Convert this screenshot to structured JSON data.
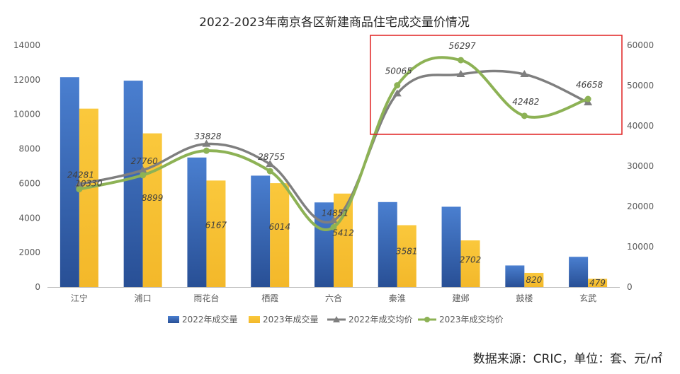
{
  "chart_data": {
    "type": "bar",
    "title": "2022-2023年南京各区新建商品住宅成交量价情况",
    "categories": [
      "江宁",
      "浦口",
      "雨花台",
      "栖霞",
      "六合",
      "秦淮",
      "建邺",
      "鼓楼",
      "玄武"
    ],
    "left_axis": {
      "min": 0,
      "max": 14000,
      "step": 2000,
      "ticks": [
        "0",
        "2000",
        "4000",
        "6000",
        "8000",
        "10000",
        "12000",
        "14000"
      ]
    },
    "right_axis": {
      "min": 0,
      "max": 60000,
      "step": 10000,
      "ticks": [
        "0",
        "10000",
        "20000",
        "30000",
        "40000",
        "50000",
        "60000"
      ]
    },
    "series": [
      {
        "name": "2022年成交量",
        "kind": "bar",
        "axis": "left",
        "color": "#4472C4",
        "values": [
          12150,
          11950,
          7500,
          6450,
          4900,
          4920,
          4650,
          1250,
          1750
        ]
      },
      {
        "name": "2023年成交量",
        "kind": "bar",
        "axis": "left",
        "color": "#F8C23A",
        "values": [
          10330,
          8899,
          6167,
          6014,
          5412,
          3581,
          2702,
          820,
          479
        ],
        "labels": [
          "10330",
          "8899",
          "6167",
          "6014",
          "5412",
          "3581",
          "2702",
          "820",
          "479"
        ]
      },
      {
        "name": "2022年成交均价",
        "kind": "line",
        "axis": "right",
        "color": "#7F7F7F",
        "values": [
          25500,
          29000,
          35500,
          30500,
          16500,
          48000,
          52800,
          52800,
          45800
        ]
      },
      {
        "name": "2023年成交均价",
        "kind": "line",
        "axis": "right",
        "color": "#8DB255",
        "values": [
          24281,
          27760,
          33828,
          28755,
          14851,
          50065,
          56297,
          42482,
          46658
        ],
        "labels": [
          "24281",
          "27760",
          "33828",
          "28755",
          "14851",
          "50065",
          "56297",
          "42482",
          "46658"
        ]
      }
    ],
    "legend_position": "bottom",
    "grid": false,
    "highlight_box": {
      "from_category": "秦淮",
      "to_category": "玄武",
      "color": "#E02020"
    }
  },
  "source_note": "数据来源：CRIC，单位：套、元/㎡"
}
